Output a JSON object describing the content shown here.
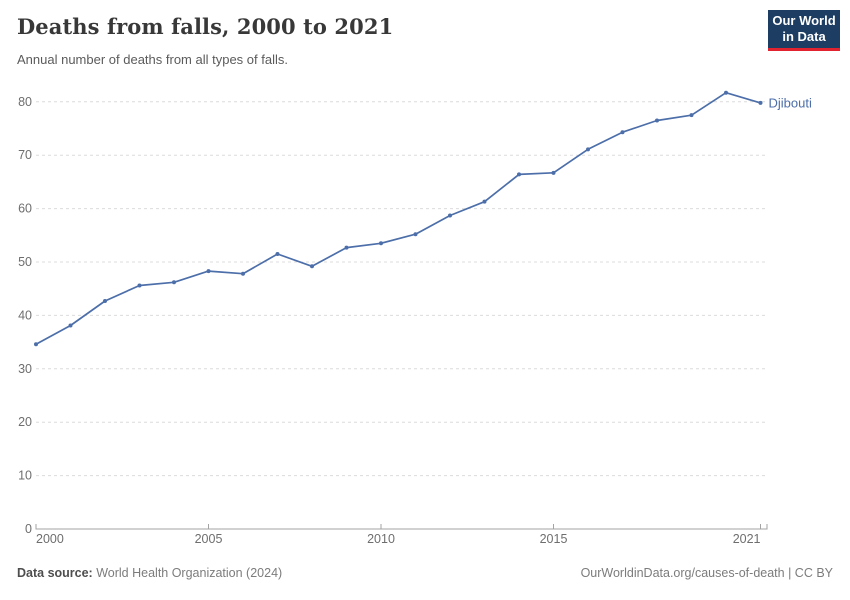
{
  "header": {
    "title": "Deaths from falls, 2000 to 2021",
    "subtitle": "Annual number of deaths from all types of falls.",
    "logo": {
      "line1": "Our World",
      "line2": "in Data",
      "bg_color": "#1d3d63",
      "stripe_color": "#e0232f"
    }
  },
  "chart_data": {
    "type": "line",
    "title": "Deaths from falls, 2000 to 2021",
    "subtitle": "Annual number of deaths from all types of falls.",
    "series": [
      {
        "name": "Djibouti",
        "x": [
          2000,
          2001,
          2002,
          2003,
          2004,
          2005,
          2006,
          2007,
          2008,
          2009,
          2010,
          2011,
          2012,
          2013,
          2014,
          2015,
          2016,
          2017,
          2018,
          2019,
          2020,
          2021
        ],
        "values": [
          34.6,
          38.1,
          42.7,
          45.6,
          46.2,
          48.3,
          47.8,
          51.5,
          49.2,
          52.7,
          53.5,
          55.2,
          58.7,
          61.3,
          66.4,
          66.7,
          71.1,
          74.3,
          76.5,
          77.5,
          81.7,
          79.8
        ]
      }
    ],
    "xlabel": "",
    "ylabel": "",
    "xlim": [
      2000,
      2021
    ],
    "ylim": [
      0,
      80
    ],
    "yticks": [
      0,
      10,
      20,
      30,
      40,
      50,
      60,
      70,
      80
    ],
    "xticks": [
      2000,
      2005,
      2010,
      2015,
      2021
    ],
    "xtick_labels": [
      "2000",
      "2005",
      "2010",
      "2015",
      "2021"
    ],
    "grid": "horizontal-dashed",
    "legend_position": "end-of-line-label",
    "entity_label": "Djibouti",
    "line_color": "#4c6ea9",
    "grid_color": "#dcdcdc",
    "axis_color": "#a3a3a3",
    "tick_label_color": "#6e6e6e"
  },
  "footer": {
    "source_label": "Data source:",
    "source_text": "World Health Organization (2024)",
    "credit": "OurWorldinData.org/causes-of-death | CC BY"
  }
}
